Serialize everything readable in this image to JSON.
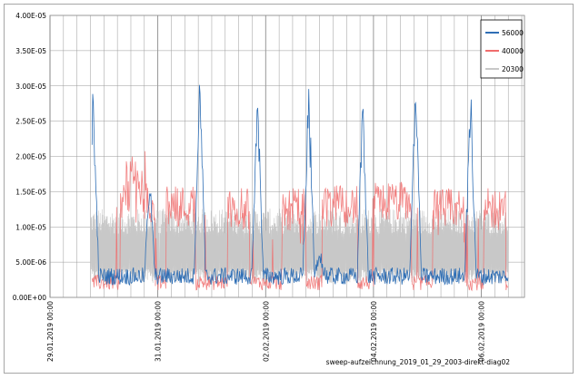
{
  "chart_data": {
    "type": "line",
    "title": "",
    "xlabel": "",
    "ylabel": "",
    "caption": "sweep-aufzeichnung_2019_01_29_2003-direkt-diag02",
    "y_tick_labels": [
      "0.00E+00",
      "5.00E-06",
      "1.00E-05",
      "1.50E-05",
      "2.00E-05",
      "2.50E-05",
      "3.00E-05",
      "3.50E-05",
      "4.00E-05"
    ],
    "y_ticks": [
      0,
      5e-06,
      1e-05,
      1.5e-05,
      2e-05,
      2.5e-05,
      3e-05,
      3.5e-05,
      4e-05
    ],
    "ylim": [
      0,
      4e-05
    ],
    "x_tick_labels": [
      "29.01.2019 00:00",
      "31.01.2019 00:00",
      "02.02.2019 00:00",
      "04.02.2019 00:00",
      "06.02.2019 00:00"
    ],
    "x_tick_days": [
      0,
      2,
      4,
      6,
      8
    ],
    "xlim_days": [
      0,
      8.8
    ],
    "grid": true,
    "legend_position": "top-right",
    "series": [
      {
        "name": "56000",
        "color": "#2e6eb5",
        "approx": {
          "baseline": 2.5e-06,
          "peaks": [
            {
              "day": 0.8,
              "value": 3.15e-05
            },
            {
              "day": 1.85,
              "value": 1.9e-05
            },
            {
              "day": 2.78,
              "value": 3.5e-05
            },
            {
              "day": 3.85,
              "value": 3.15e-05
            },
            {
              "day": 4.8,
              "value": 2.95e-05
            },
            {
              "day": 5.8,
              "value": 2.95e-05
            },
            {
              "day": 6.78,
              "value": 3.33e-05
            },
            {
              "day": 7.8,
              "value": 3.17e-05
            }
          ]
        }
      },
      {
        "name": "40000",
        "color": "#f06c6c",
        "approx": {
          "baseline": 1e-06,
          "plateaus": [
            {
              "from": 1.3,
              "to": 1.95,
              "value": 1.35e-05,
              "max": 2.1e-05
            },
            {
              "from": 2.15,
              "to": 2.7,
              "value": 1.3e-05
            },
            {
              "from": 3.3,
              "to": 3.7,
              "value": 1.25e-05
            },
            {
              "from": 4.3,
              "to": 4.75,
              "value": 1.25e-05
            },
            {
              "from": 5.05,
              "to": 5.7,
              "value": 1.3e-05
            },
            {
              "from": 6.0,
              "to": 6.7,
              "value": 1.35e-05
            },
            {
              "from": 7.1,
              "to": 7.7,
              "value": 1.25e-05
            },
            {
              "from": 8.05,
              "to": 8.45,
              "value": 1.25e-05
            }
          ]
        }
      },
      {
        "name": "20300",
        "color": "#c8c8c8",
        "approx": {
          "low": 2e-06,
          "high": 1.2e-05,
          "from": 0.75,
          "to": 8.5
        }
      }
    ]
  }
}
